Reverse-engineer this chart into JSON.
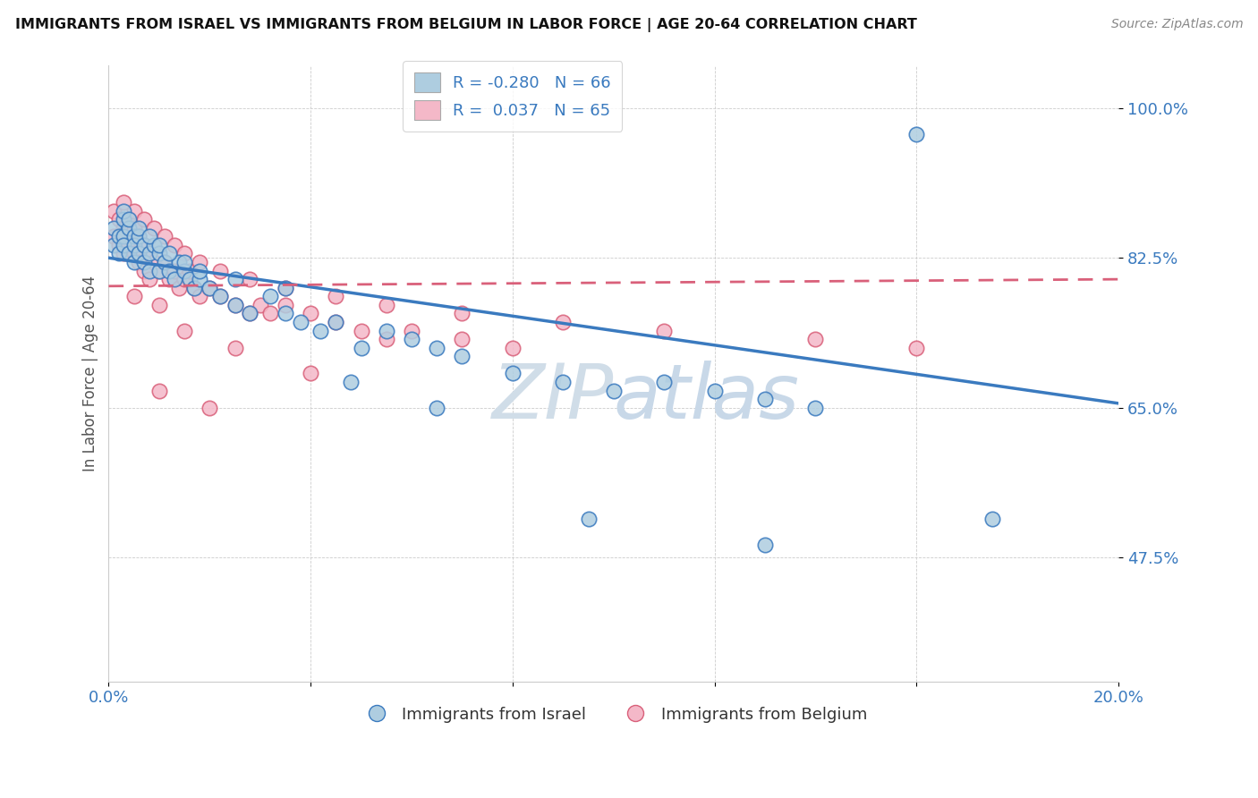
{
  "title": "IMMIGRANTS FROM ISRAEL VS IMMIGRANTS FROM BELGIUM IN LABOR FORCE | AGE 20-64 CORRELATION CHART",
  "source": "Source: ZipAtlas.com",
  "ylabel": "In Labor Force | Age 20-64",
  "xlim": [
    0.0,
    0.2
  ],
  "ylim": [
    0.33,
    1.05
  ],
  "xticks": [
    0.0,
    0.04,
    0.08,
    0.12,
    0.16,
    0.2
  ],
  "xtick_labels": [
    "0.0%",
    "",
    "",
    "",
    "",
    "20.0%"
  ],
  "yticks": [
    0.475,
    0.65,
    0.825,
    1.0
  ],
  "ytick_labels": [
    "47.5%",
    "65.0%",
    "82.5%",
    "100.0%"
  ],
  "legend_israel": "Immigrants from Israel",
  "legend_belgium": "Immigrants from Belgium",
  "R_israel": -0.28,
  "N_israel": 66,
  "R_belgium": 0.037,
  "N_belgium": 65,
  "color_israel": "#aecde0",
  "color_belgium": "#f4b8c8",
  "line_color_israel": "#3a7abf",
  "line_color_belgium": "#d9607a",
  "israel_x": [
    0.001,
    0.001,
    0.002,
    0.002,
    0.003,
    0.003,
    0.003,
    0.004,
    0.004,
    0.005,
    0.005,
    0.005,
    0.006,
    0.006,
    0.007,
    0.007,
    0.008,
    0.008,
    0.009,
    0.01,
    0.01,
    0.011,
    0.012,
    0.013,
    0.014,
    0.015,
    0.016,
    0.017,
    0.018,
    0.02,
    0.022,
    0.025,
    0.028,
    0.032,
    0.035,
    0.038,
    0.042,
    0.045,
    0.05,
    0.055,
    0.06,
    0.065,
    0.07,
    0.08,
    0.09,
    0.1,
    0.11,
    0.12,
    0.13,
    0.14,
    0.003,
    0.004,
    0.006,
    0.008,
    0.01,
    0.012,
    0.015,
    0.018,
    0.025,
    0.035,
    0.048,
    0.065,
    0.095,
    0.13,
    0.16,
    0.175
  ],
  "israel_y": [
    0.86,
    0.84,
    0.85,
    0.83,
    0.87,
    0.85,
    0.84,
    0.86,
    0.83,
    0.85,
    0.84,
    0.82,
    0.85,
    0.83,
    0.84,
    0.82,
    0.83,
    0.81,
    0.84,
    0.83,
    0.81,
    0.82,
    0.81,
    0.8,
    0.82,
    0.81,
    0.8,
    0.79,
    0.8,
    0.79,
    0.78,
    0.77,
    0.76,
    0.78,
    0.76,
    0.75,
    0.74,
    0.75,
    0.72,
    0.74,
    0.73,
    0.72,
    0.71,
    0.69,
    0.68,
    0.67,
    0.68,
    0.67,
    0.66,
    0.65,
    0.88,
    0.87,
    0.86,
    0.85,
    0.84,
    0.83,
    0.82,
    0.81,
    0.8,
    0.79,
    0.68,
    0.65,
    0.52,
    0.49,
    0.97,
    0.52
  ],
  "belgium_x": [
    0.001,
    0.001,
    0.002,
    0.002,
    0.003,
    0.003,
    0.004,
    0.004,
    0.005,
    0.005,
    0.006,
    0.006,
    0.007,
    0.007,
    0.008,
    0.008,
    0.009,
    0.01,
    0.011,
    0.012,
    0.013,
    0.014,
    0.015,
    0.016,
    0.017,
    0.018,
    0.02,
    0.022,
    0.025,
    0.028,
    0.03,
    0.032,
    0.035,
    0.04,
    0.045,
    0.05,
    0.055,
    0.06,
    0.07,
    0.08,
    0.003,
    0.005,
    0.007,
    0.009,
    0.011,
    0.013,
    0.015,
    0.018,
    0.022,
    0.028,
    0.035,
    0.045,
    0.055,
    0.07,
    0.09,
    0.11,
    0.14,
    0.16,
    0.005,
    0.01,
    0.015,
    0.025,
    0.04,
    0.01,
    0.02
  ],
  "belgium_y": [
    0.88,
    0.85,
    0.87,
    0.84,
    0.86,
    0.83,
    0.87,
    0.84,
    0.86,
    0.83,
    0.85,
    0.82,
    0.84,
    0.81,
    0.83,
    0.8,
    0.82,
    0.81,
    0.82,
    0.8,
    0.81,
    0.79,
    0.8,
    0.81,
    0.79,
    0.78,
    0.79,
    0.78,
    0.77,
    0.76,
    0.77,
    0.76,
    0.77,
    0.76,
    0.75,
    0.74,
    0.73,
    0.74,
    0.73,
    0.72,
    0.89,
    0.88,
    0.87,
    0.86,
    0.85,
    0.84,
    0.83,
    0.82,
    0.81,
    0.8,
    0.79,
    0.78,
    0.77,
    0.76,
    0.75,
    0.74,
    0.73,
    0.72,
    0.78,
    0.77,
    0.74,
    0.72,
    0.69,
    0.67,
    0.65
  ],
  "trend_israel_x0": 0.0,
  "trend_israel_y0": 0.825,
  "trend_israel_x1": 0.2,
  "trend_israel_y1": 0.655,
  "trend_belgium_x0": 0.0,
  "trend_belgium_y0": 0.792,
  "trend_belgium_x1": 0.2,
  "trend_belgium_y1": 0.8
}
